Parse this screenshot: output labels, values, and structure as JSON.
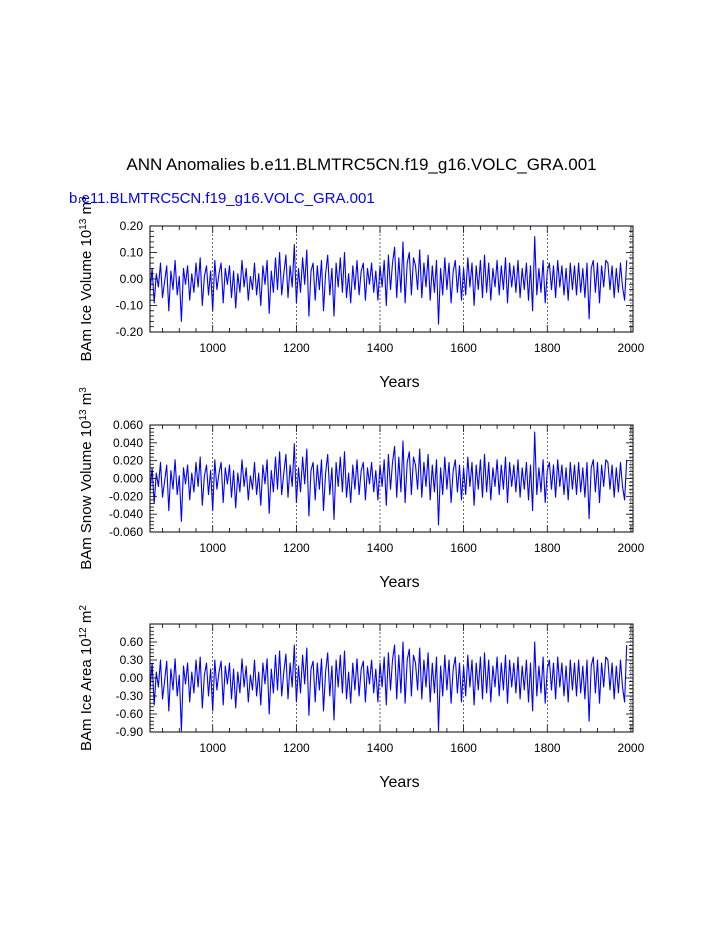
{
  "figure": {
    "title": "ANN Anomalies b.e11.BLMTRC5CN.f19_g16.VOLC_GRA.001",
    "subtitle": "b.e11.BLMTRC5CN.f19_g16.VOLC_GRA.001",
    "line_color": "#0000ff",
    "grid_color": "#000000"
  },
  "chart_data": [
    {
      "type": "line",
      "title": "",
      "xlabel": "Years",
      "ylabel": "BAm Ice Volume 10",
      "ylabel_exp": "13",
      "ylabel_unit": " m",
      "ylabel_unit_exp": "3",
      "xlim": [
        850,
        2005
      ],
      "ylim": [
        -0.2,
        0.2
      ],
      "xticks": [
        1000,
        1200,
        1400,
        1600,
        1800,
        2000
      ],
      "xtick_labels": [
        "1000",
        "1200",
        "1400",
        "1600",
        "1800",
        "2000"
      ],
      "yticks": [
        -0.2,
        -0.1,
        0.0,
        0.1,
        0.2
      ],
      "ytick_labels": [
        "-0.20",
        "-0.10",
        "0.00",
        "0.10",
        "0.20"
      ],
      "series": [
        {
          "name": "BAm Ice Volume",
          "x_start": 850,
          "x_step": 5,
          "values": [
            -0.05,
            0.04,
            -0.09,
            0.02,
            -0.03,
            0.06,
            -0.07,
            -0.01,
            0.05,
            -0.12,
            0.03,
            -0.04,
            0.07,
            -0.06,
            0.01,
            -0.16,
            0.04,
            -0.02,
            0.05,
            -0.08,
            0.02,
            -0.05,
            0.06,
            -0.03,
            0.08,
            -0.1,
            0.01,
            0.05,
            -0.06,
            0.03,
            -0.12,
            0.07,
            -0.04,
            0.02,
            0.06,
            -0.09,
            0.04,
            -0.02,
            0.05,
            -0.07,
            0.03,
            -0.11,
            0.02,
            -0.05,
            0.07,
            -0.03,
            0.04,
            -0.08,
            0.01,
            -0.04,
            0.06,
            -0.06,
            0.02,
            -0.1,
            0.05,
            -0.02,
            0.07,
            -0.13,
            0.03,
            -0.05,
            0.08,
            -0.04,
            0.1,
            -0.06,
            0.02,
            0.09,
            -0.07,
            0.05,
            -0.03,
            0.13,
            -0.09,
            0.04,
            -0.05,
            0.08,
            -0.02,
            0.11,
            -0.14,
            0.03,
            0.06,
            -0.08,
            0.05,
            -0.04,
            0.07,
            -0.12,
            0.02,
            0.09,
            -0.06,
            0.04,
            -0.14,
            0.06,
            -0.03,
            0.08,
            -0.05,
            0.1,
            -0.07,
            0.02,
            -0.09,
            0.05,
            -0.04,
            0.07,
            -0.06,
            0.03,
            0.06,
            -0.08,
            0.04,
            -0.02,
            0.06,
            -0.05,
            0.03,
            -0.08,
            0.05,
            -0.03,
            0.07,
            -0.1,
            0.09,
            -0.04,
            0.06,
            0.12,
            -0.07,
            0.08,
            -0.05,
            0.14,
            -0.09,
            0.06,
            0.1,
            -0.06,
            0.08,
            0.05,
            -0.04,
            0.11,
            -0.07,
            0.06,
            -0.03,
            0.09,
            -0.08,
            0.05,
            -0.05,
            0.07,
            -0.17,
            0.04,
            -0.06,
            0.08,
            -0.04,
            0.06,
            -0.09,
            0.03,
            0.07,
            -0.05,
            0.05,
            -0.08,
            0.04,
            -0.06,
            0.08,
            -0.03,
            0.06,
            -0.1,
            0.05,
            -0.04,
            0.07,
            -0.07,
            0.09,
            -0.05,
            0.06,
            -0.08,
            0.04,
            -0.03,
            0.07,
            -0.06,
            0.05,
            -0.04,
            0.08,
            -0.09,
            0.06,
            -0.03,
            0.05,
            -0.05,
            0.07,
            -0.07,
            0.04,
            -0.04,
            0.06,
            -0.08,
            0.05,
            -0.12,
            0.16,
            -0.06,
            0.04,
            -0.05,
            0.07,
            -0.09,
            0.03,
            0.06,
            -0.04,
            0.05,
            -0.07,
            0.07,
            -0.03,
            0.05,
            -0.06,
            0.04,
            -0.08,
            0.06,
            -0.04,
            0.05,
            -0.06,
            0.06,
            -0.05,
            0.04,
            -0.07,
            0.06,
            -0.15,
            0.04,
            0.07,
            -0.05,
            0.06,
            -0.09,
            0.05,
            -0.03,
            0.07,
            0.06,
            -0.04,
            0.05,
            -0.07,
            0.04,
            -0.05,
            0.06,
            -0.03,
            -0.08,
            0.07
          ]
        }
      ]
    },
    {
      "type": "line",
      "title": "",
      "xlabel": "Years",
      "ylabel": "BAm Snow Volume 10",
      "ylabel_exp": "13",
      "ylabel_unit": " m",
      "ylabel_unit_exp": "3",
      "xlim": [
        850,
        2005
      ],
      "ylim": [
        -0.06,
        0.06
      ],
      "xticks": [
        1000,
        1200,
        1400,
        1600,
        1800,
        2000
      ],
      "xtick_labels": [
        "1000",
        "1200",
        "1400",
        "1600",
        "1800",
        "2000"
      ],
      "yticks": [
        -0.06,
        -0.04,
        -0.02,
        0.0,
        0.02,
        0.04,
        0.06
      ],
      "ytick_labels": [
        "-0.060",
        "-0.040",
        "-0.020",
        "0.000",
        "0.020",
        "0.040",
        "0.060"
      ],
      "series": [
        {
          "name": "BAm Snow Volume",
          "x_start": 850,
          "x_step": 5,
          "values": [
            -0.015,
            0.012,
            -0.028,
            0.006,
            -0.009,
            0.018,
            -0.021,
            -0.003,
            0.015,
            -0.036,
            0.009,
            -0.012,
            0.021,
            -0.018,
            0.003,
            -0.048,
            0.012,
            -0.006,
            0.015,
            -0.024,
            0.006,
            -0.015,
            0.018,
            -0.009,
            0.024,
            -0.03,
            0.003,
            0.015,
            -0.018,
            0.009,
            -0.036,
            0.021,
            -0.012,
            0.006,
            0.018,
            -0.027,
            0.012,
            -0.006,
            0.015,
            -0.021,
            0.009,
            -0.033,
            0.006,
            -0.015,
            0.021,
            -0.009,
            0.012,
            -0.024,
            0.003,
            -0.012,
            0.018,
            -0.018,
            0.006,
            -0.03,
            0.015,
            -0.006,
            0.021,
            -0.039,
            0.009,
            -0.015,
            0.024,
            -0.012,
            0.03,
            -0.018,
            0.006,
            0.027,
            -0.021,
            0.015,
            -0.009,
            0.039,
            -0.027,
            0.012,
            -0.015,
            0.024,
            -0.006,
            0.033,
            -0.042,
            0.009,
            0.018,
            -0.024,
            0.015,
            -0.012,
            0.021,
            -0.036,
            0.006,
            0.027,
            -0.018,
            0.012,
            -0.046,
            0.018,
            -0.009,
            0.024,
            -0.015,
            0.03,
            -0.021,
            0.006,
            -0.027,
            0.015,
            -0.012,
            0.021,
            -0.018,
            0.009,
            0.018,
            -0.024,
            0.012,
            -0.006,
            0.018,
            -0.015,
            0.009,
            -0.024,
            0.015,
            -0.009,
            0.021,
            -0.03,
            0.027,
            -0.012,
            0.018,
            0.036,
            -0.021,
            0.024,
            -0.015,
            0.042,
            -0.027,
            0.018,
            0.03,
            -0.018,
            0.024,
            0.015,
            -0.012,
            0.033,
            -0.021,
            0.018,
            -0.009,
            0.027,
            -0.024,
            0.015,
            -0.015,
            0.021,
            -0.052,
            0.012,
            -0.018,
            0.024,
            -0.012,
            0.018,
            -0.027,
            0.009,
            0.021,
            -0.015,
            0.015,
            -0.024,
            0.012,
            -0.018,
            0.024,
            -0.009,
            0.018,
            -0.03,
            0.015,
            -0.012,
            0.021,
            -0.021,
            0.027,
            -0.015,
            0.018,
            -0.024,
            0.012,
            -0.009,
            0.021,
            -0.018,
            0.015,
            -0.012,
            0.024,
            -0.027,
            0.018,
            -0.009,
            0.015,
            -0.015,
            0.021,
            -0.021,
            0.012,
            -0.012,
            0.018,
            -0.024,
            0.015,
            -0.036,
            0.052,
            -0.018,
            0.012,
            -0.015,
            0.021,
            -0.027,
            0.009,
            0.018,
            -0.012,
            0.015,
            -0.021,
            0.021,
            -0.009,
            0.015,
            -0.018,
            0.012,
            -0.024,
            0.018,
            -0.012,
            0.015,
            -0.018,
            0.018,
            -0.015,
            0.012,
            -0.021,
            0.018,
            -0.045,
            0.012,
            0.021,
            -0.015,
            0.018,
            -0.027,
            0.015,
            -0.009,
            0.021,
            0.018,
            -0.012,
            0.015,
            -0.021,
            0.012,
            -0.015,
            0.018,
            -0.009,
            -0.024,
            0.021
          ]
        }
      ]
    },
    {
      "type": "line",
      "title": "",
      "xlabel": "Years",
      "ylabel": "BAm Ice Area 10",
      "ylabel_exp": "12",
      "ylabel_unit": " m",
      "ylabel_unit_exp": "2",
      "xlim": [
        850,
        2005
      ],
      "ylim": [
        -0.9,
        0.9
      ],
      "xticks": [
        1000,
        1200,
        1400,
        1600,
        1800,
        2000
      ],
      "xtick_labels": [
        "1000",
        "1200",
        "1400",
        "1600",
        "1800",
        "2000"
      ],
      "yticks": [
        -0.9,
        -0.6,
        -0.3,
        0.0,
        0.3,
        0.6
      ],
      "ytick_labels": [
        "-0.90",
        "-0.60",
        "-0.30",
        "0.00",
        "0.30",
        "0.60"
      ],
      "series": [
        {
          "name": "BAm Ice Area",
          "x_start": 850,
          "x_step": 5,
          "values": [
            -0.2,
            0.25,
            -0.45,
            0.1,
            -0.15,
            0.3,
            -0.35,
            -0.05,
            0.28,
            -0.55,
            0.15,
            -0.2,
            0.32,
            -0.3,
            0.05,
            -0.88,
            0.2,
            -0.1,
            0.25,
            -0.4,
            0.1,
            -0.25,
            0.3,
            -0.15,
            0.35,
            -0.5,
            0.05,
            0.25,
            -0.3,
            0.15,
            -0.55,
            0.3,
            -0.2,
            0.1,
            0.28,
            -0.45,
            0.2,
            -0.1,
            0.25,
            -0.35,
            0.15,
            -0.5,
            0.1,
            -0.25,
            0.32,
            -0.15,
            0.2,
            -0.4,
            0.05,
            -0.2,
            0.3,
            -0.3,
            0.1,
            -0.45,
            0.25,
            -0.1,
            0.32,
            -0.6,
            0.15,
            -0.25,
            0.38,
            -0.2,
            0.45,
            -0.3,
            0.1,
            0.4,
            -0.35,
            0.25,
            -0.15,
            0.55,
            -0.4,
            0.2,
            -0.25,
            0.38,
            -0.1,
            0.5,
            -0.62,
            0.15,
            0.28,
            -0.4,
            0.25,
            -0.2,
            0.32,
            -0.55,
            0.1,
            0.42,
            -0.3,
            0.2,
            -0.7,
            0.3,
            -0.15,
            0.38,
            -0.25,
            0.45,
            -0.35,
            0.1,
            -0.42,
            0.25,
            -0.2,
            0.32,
            -0.3,
            0.15,
            0.28,
            -0.4,
            0.2,
            -0.1,
            0.3,
            -0.25,
            0.15,
            -0.4,
            0.25,
            -0.15,
            0.35,
            -0.45,
            0.42,
            -0.2,
            0.3,
            0.55,
            -0.35,
            0.38,
            -0.25,
            0.6,
            -0.42,
            0.3,
            0.48,
            -0.3,
            0.38,
            0.25,
            -0.2,
            0.5,
            -0.35,
            0.3,
            -0.15,
            0.42,
            -0.4,
            0.25,
            -0.25,
            0.35,
            -0.88,
            0.2,
            -0.3,
            0.38,
            -0.2,
            0.3,
            -0.42,
            0.15,
            0.35,
            -0.25,
            0.25,
            -0.4,
            0.2,
            -0.3,
            0.38,
            -0.15,
            0.3,
            -0.45,
            0.25,
            -0.2,
            0.35,
            -0.35,
            0.42,
            -0.25,
            0.3,
            -0.4,
            0.2,
            -0.15,
            0.35,
            -0.3,
            0.25,
            -0.2,
            0.38,
            -0.42,
            0.3,
            -0.15,
            0.25,
            -0.25,
            0.35,
            -0.35,
            0.2,
            -0.2,
            0.3,
            -0.4,
            0.25,
            -0.55,
            0.6,
            -0.3,
            0.2,
            -0.25,
            0.35,
            -0.42,
            0.15,
            0.3,
            -0.2,
            0.25,
            -0.35,
            0.35,
            -0.15,
            0.25,
            -0.3,
            0.2,
            -0.4,
            0.3,
            -0.2,
            0.25,
            -0.3,
            0.3,
            -0.25,
            0.2,
            -0.35,
            0.3,
            -0.72,
            0.2,
            0.35,
            -0.25,
            0.3,
            -0.42,
            0.25,
            -0.15,
            0.35,
            0.3,
            -0.2,
            0.25,
            -0.35,
            0.2,
            -0.25,
            0.3,
            -0.15,
            -0.4,
            0.55
          ]
        }
      ]
    }
  ]
}
